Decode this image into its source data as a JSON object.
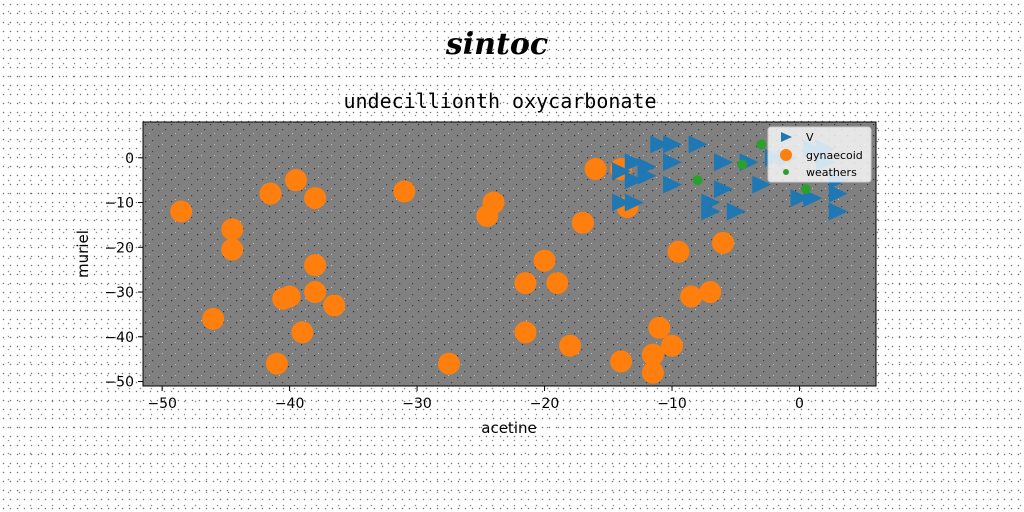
{
  "chart_data": {
    "type": "scatter",
    "suptitle": "sintoc",
    "title": "undecillionth oxycarbonate",
    "xlabel": "acetine",
    "ylabel": "muriel",
    "xlim": [
      -51.5,
      6
    ],
    "ylim": [
      -51,
      8
    ],
    "xticks": [
      -50,
      -40,
      -30,
      -20,
      -10,
      0
    ],
    "yticks": [
      0,
      -10,
      -20,
      -30,
      -40,
      -50
    ],
    "xtick_labels": [
      "−50",
      "−40",
      "−30",
      "−20",
      "−10",
      "0"
    ],
    "ytick_labels": [
      "0",
      "−10",
      "−20",
      "−30",
      "−40",
      "−50"
    ],
    "grid": false,
    "legend_position": "upper right",
    "series": [
      {
        "name": "V",
        "marker": "triangle-right",
        "color": "#1f77b4",
        "points": [
          [
            -11,
            3
          ],
          [
            -10,
            3
          ],
          [
            -8,
            3
          ],
          [
            -13,
            -1
          ],
          [
            -12,
            -2
          ],
          [
            -10,
            -1
          ],
          [
            -14,
            -3
          ],
          [
            -12,
            -4
          ],
          [
            -10,
            -6
          ],
          [
            -13,
            -5
          ],
          [
            -6,
            -1
          ],
          [
            -4,
            -1
          ],
          [
            -6,
            -7
          ],
          [
            -3,
            -6
          ],
          [
            -2,
            0
          ],
          [
            -1,
            0
          ],
          [
            -7,
            -10
          ],
          [
            -5,
            -12
          ],
          [
            -7,
            -12
          ],
          [
            -14,
            -10
          ],
          [
            -13,
            -10
          ],
          [
            0,
            -9
          ],
          [
            1,
            -9
          ],
          [
            3,
            -5
          ],
          [
            3,
            -8
          ],
          [
            3,
            -12
          ],
          [
            1,
            2
          ],
          [
            2,
            2
          ],
          [
            2,
            -1
          ]
        ]
      },
      {
        "name": "gynaecoid",
        "marker": "circle",
        "color": "#ff7f0e",
        "points": [
          [
            -48.5,
            -12
          ],
          [
            -46,
            -36
          ],
          [
            -44.5,
            -16
          ],
          [
            -44.5,
            -20.5
          ],
          [
            -41.5,
            -8
          ],
          [
            -39.5,
            -5
          ],
          [
            -38,
            -9
          ],
          [
            -41,
            -46
          ],
          [
            -40,
            -31
          ],
          [
            -40.5,
            -31.5
          ],
          [
            -39,
            -39
          ],
          [
            -38,
            -24
          ],
          [
            -38,
            -30
          ],
          [
            -36.5,
            -33
          ],
          [
            -31,
            -7.5
          ],
          [
            -27.5,
            -46
          ],
          [
            -24.5,
            -13
          ],
          [
            -24,
            -10
          ],
          [
            -21.5,
            -28
          ],
          [
            -21.5,
            -39
          ],
          [
            -20,
            -23
          ],
          [
            -19,
            -28
          ],
          [
            -18,
            -42
          ],
          [
            -17,
            -14.5
          ],
          [
            -16,
            -2.5
          ],
          [
            -14,
            -2.5
          ],
          [
            -13.5,
            -11
          ],
          [
            -14,
            -45.5
          ],
          [
            -11.5,
            -44
          ],
          [
            -11.5,
            -48
          ],
          [
            -11,
            -38
          ],
          [
            -10,
            -42
          ],
          [
            -9.5,
            -21
          ],
          [
            -8.5,
            -31
          ],
          [
            -7,
            -30
          ],
          [
            -6,
            -19
          ]
        ]
      },
      {
        "name": "weathers",
        "marker": "small-circle",
        "color": "#2ca02c",
        "points": [
          [
            -8,
            -5
          ],
          [
            -4.5,
            -1.5
          ],
          [
            -3,
            3
          ],
          [
            0.5,
            -7
          ]
        ]
      }
    ]
  },
  "legend": {
    "items": [
      {
        "label": "V",
        "color": "#1f77b4",
        "marker": "triangle-right"
      },
      {
        "label": "gynaecoid",
        "color": "#ff7f0e",
        "marker": "circle"
      },
      {
        "label": "weathers",
        "color": "#2ca02c",
        "marker": "small-circle"
      }
    ]
  }
}
